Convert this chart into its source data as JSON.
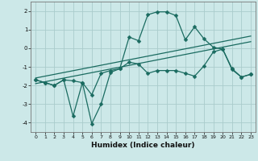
{
  "xlabel": "Humidex (Indice chaleur)",
  "bg_color": "#cce8e8",
  "grid_color": "#aacccc",
  "line_color": "#1a6b60",
  "xlim": [
    -0.5,
    23.5
  ],
  "ylim": [
    -4.5,
    2.5
  ],
  "xticks": [
    0,
    1,
    2,
    3,
    4,
    5,
    6,
    7,
    8,
    9,
    10,
    11,
    12,
    13,
    14,
    15,
    16,
    17,
    18,
    19,
    20,
    21,
    22,
    23
  ],
  "yticks": [
    -4,
    -3,
    -2,
    -1,
    0,
    1,
    2
  ],
  "series1_x": [
    0,
    1,
    2,
    3,
    4,
    5,
    6,
    7,
    8,
    9,
    10,
    11,
    12,
    13,
    14,
    15,
    16,
    17,
    18,
    19,
    20,
    21,
    22,
    23
  ],
  "series1_y": [
    -1.7,
    -1.85,
    -2.0,
    -1.7,
    -1.75,
    -1.85,
    -2.5,
    -1.35,
    -1.2,
    -1.1,
    -0.75,
    -0.85,
    -1.35,
    -1.2,
    -1.2,
    -1.2,
    -1.35,
    -1.5,
    -0.95,
    -0.2,
    -0.05,
    -1.15,
    -1.55,
    -1.4
  ],
  "series2_x": [
    0,
    1,
    2,
    3,
    4,
    5,
    6,
    7,
    8,
    9,
    10,
    11,
    12,
    13,
    14,
    15,
    16,
    17,
    18,
    19,
    20,
    21,
    22,
    23
  ],
  "series2_y": [
    -1.7,
    -1.85,
    -2.0,
    -1.7,
    -3.65,
    -1.85,
    -4.05,
    -3.0,
    -1.3,
    -1.1,
    0.6,
    0.4,
    1.8,
    1.95,
    1.95,
    1.75,
    0.45,
    1.15,
    0.5,
    0.05,
    -0.05,
    -1.1,
    -1.55,
    -1.4
  ],
  "line1_x": [
    0,
    23
  ],
  "line1_y": [
    -1.9,
    0.35
  ],
  "line2_x": [
    0,
    23
  ],
  "line2_y": [
    -1.6,
    0.65
  ],
  "markersize": 2.5,
  "linewidth": 0.9,
  "xlabel_fontsize": 6.5,
  "tick_fontsize": 4.5
}
